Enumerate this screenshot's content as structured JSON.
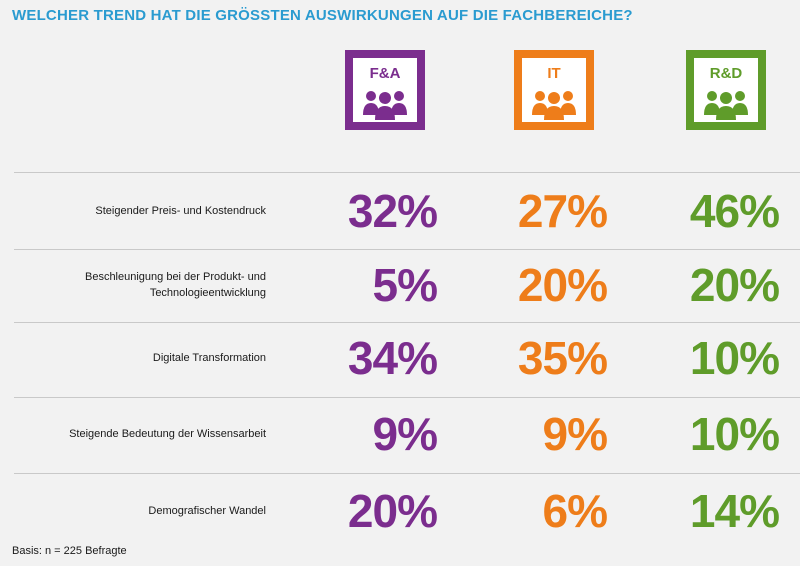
{
  "title": "WELCHER TREND HAT DIE GRÖSSTEN AUSWIRKUNGEN AUF DIE FACHBEREICHE?",
  "footnote": "Basis: n = 225 Befragte",
  "chart_data": {
    "type": "table",
    "unit": "%",
    "categories": [
      "Steigender Preis- und Kostendruck",
      "Beschleunigung bei der Produkt- und Technologieentwicklung",
      "Digitale Transformation",
      "Steigende Bedeutung der Wissensarbeit",
      "Demografischer Wandel"
    ],
    "series": [
      {
        "name": "F&A",
        "color": "#7b2d8e",
        "icon": "people-group-icon",
        "values": [
          32,
          5,
          34,
          9,
          20
        ]
      },
      {
        "name": "IT",
        "color": "#ee7d1a",
        "icon": "people-group-icon",
        "values": [
          27,
          20,
          35,
          9,
          6
        ]
      },
      {
        "name": "R&D",
        "color": "#5f9c2a",
        "icon": "people-group-icon",
        "values": [
          46,
          20,
          10,
          10,
          14
        ]
      }
    ]
  }
}
